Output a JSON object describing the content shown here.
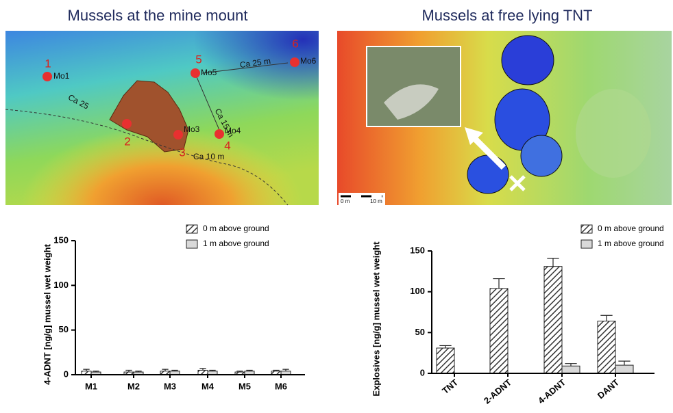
{
  "maps": [
    {
      "title": "Mussels at the mine mount",
      "labels": [
        "1",
        "2",
        "3",
        "4",
        "5",
        "6",
        "Ca 25 m",
        "Ca 15 m",
        "Ca 10 m",
        "Ca 25",
        "Mo1",
        "Mo5",
        "Mo3",
        "Mo4",
        "Mo6"
      ]
    },
    {
      "title": "Mussels at free lying TNT",
      "labels": [
        "0 m",
        "10 m"
      ]
    }
  ],
  "chart_data": [
    {
      "type": "bar",
      "ylabel": "4-ADNT [ng/g] mussel wet weight",
      "categories": [
        "M1",
        "M2",
        "M3",
        "M4",
        "M5",
        "M6"
      ],
      "series": [
        {
          "name": "0 m above ground",
          "color": "#bfbfbf",
          "hatch": true,
          "values": [
            4,
            3,
            4,
            5,
            3,
            4
          ],
          "errors": [
            2,
            2,
            2,
            2,
            1,
            1
          ]
        },
        {
          "name": "1 m above ground",
          "color": "#d9d9d9",
          "hatch": false,
          "values": [
            3,
            3,
            4,
            4,
            4,
            4
          ],
          "errors": [
            1,
            1,
            1,
            1,
            1,
            2
          ]
        }
      ],
      "ylim": [
        0,
        150
      ],
      "yticks": [
        0,
        50,
        100,
        150
      ]
    },
    {
      "type": "bar",
      "ylabel": "Explosives [ng/g] mussel wet weight",
      "categories": [
        "TNT",
        "2-ADNT",
        "4-ADNT",
        "DANT"
      ],
      "series": [
        {
          "name": "0 m above ground",
          "color": "#bfbfbf",
          "hatch": true,
          "values": [
            31,
            104,
            131,
            64
          ],
          "errors": [
            3,
            12,
            10,
            7
          ]
        },
        {
          "name": "1 m above ground",
          "color": "#d9d9d9",
          "hatch": false,
          "values": [
            null,
            null,
            9,
            10
          ],
          "errors": [
            null,
            null,
            3,
            5
          ]
        }
      ],
      "ylim": [
        0,
        150
      ],
      "yticks": [
        0,
        50,
        100,
        150
      ]
    }
  ]
}
